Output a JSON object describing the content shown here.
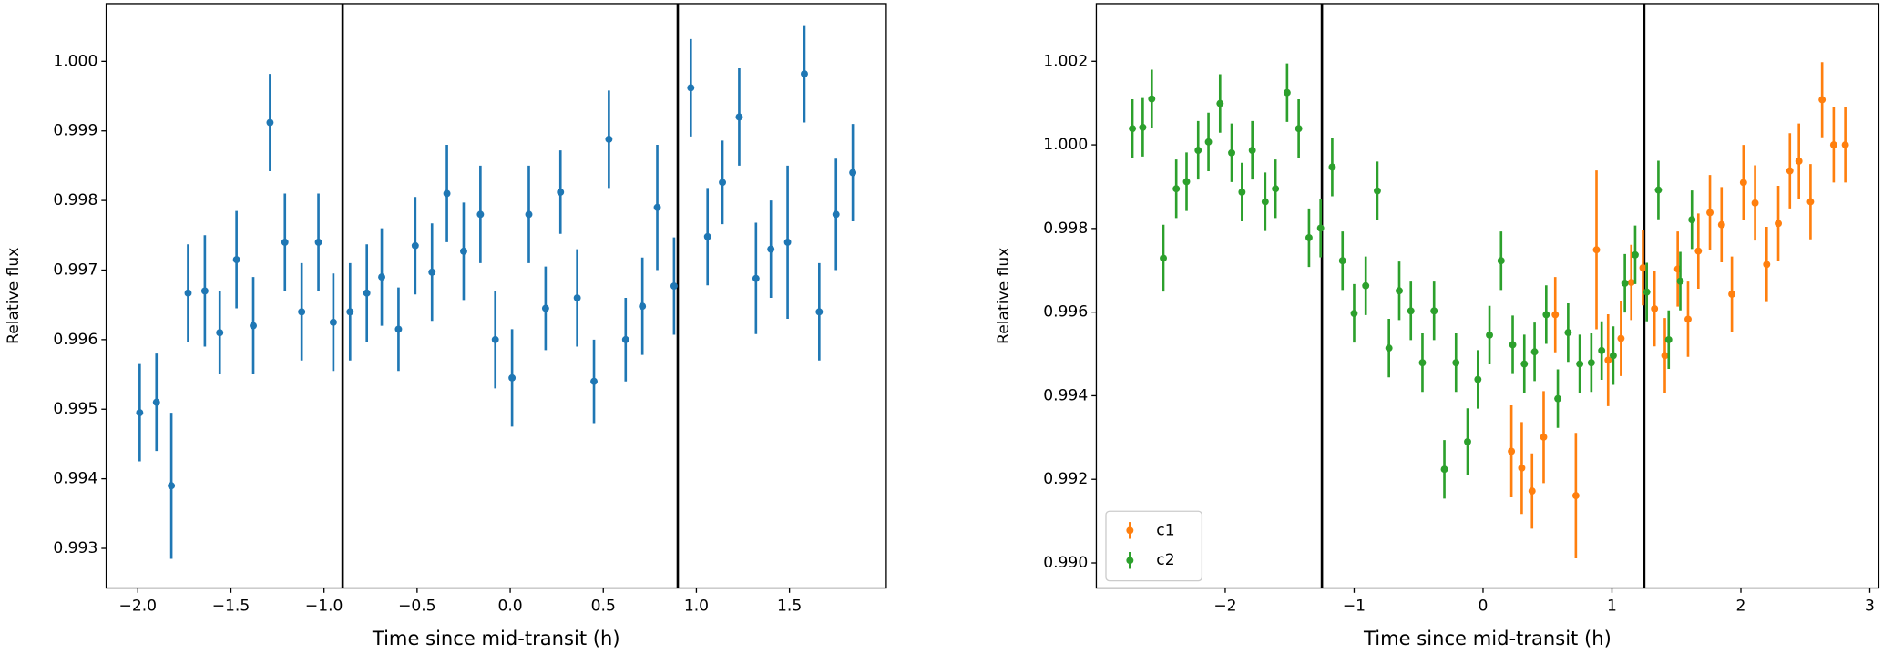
{
  "chart_data": [
    {
      "type": "errorbar",
      "xlabel": "Time since mid-transit (h)",
      "ylabel": "Relative flux",
      "xlim": [
        -2.17,
        2.02
      ],
      "ylim": [
        0.99243,
        1.00083
      ],
      "xticks": [
        {
          "value": -2.0,
          "label": "−2.0"
        },
        {
          "value": -1.5,
          "label": "−1.5"
        },
        {
          "value": -1.0,
          "label": "−1.0"
        },
        {
          "value": -0.5,
          "label": "−0.5"
        },
        {
          "value": 0.0,
          "label": "0.0"
        },
        {
          "value": 0.5,
          "label": "0.5"
        },
        {
          "value": 1.0,
          "label": "1.0"
        },
        {
          "value": 1.5,
          "label": "1.5"
        }
      ],
      "yticks": [
        0.993,
        0.994,
        0.995,
        0.996,
        0.997,
        0.998,
        0.999,
        {
          "value": 1.0,
          "label": "1.000"
        }
      ],
      "vlines": [
        -0.9,
        0.9
      ],
      "series": [
        {
          "color": "#1f77b4",
          "x": [
            -1.99,
            -1.9,
            -1.82,
            -1.73,
            -1.64,
            -1.56,
            -1.47,
            -1.38,
            -1.29,
            -1.21,
            -1.12,
            -1.03,
            -0.95,
            -0.86,
            -0.77,
            -0.69,
            -0.6,
            -0.51,
            -0.42,
            -0.34,
            -0.25,
            -0.16,
            -0.08,
            0.01,
            0.1,
            0.19,
            0.27,
            0.36,
            0.45,
            0.53,
            0.62,
            0.71,
            0.79,
            0.88,
            0.97,
            1.06,
            1.14,
            1.23,
            1.32,
            1.4,
            1.49,
            1.58,
            1.66,
            1.75,
            1.84
          ],
          "values": [
            0.99495,
            0.9951,
            0.9939,
            0.99667,
            0.9967,
            0.9961,
            0.99715,
            0.9962,
            0.99912,
            0.9974,
            0.9964,
            0.9974,
            0.99625,
            0.9964,
            0.99667,
            0.9969,
            0.99615,
            0.99735,
            0.99697,
            0.9981,
            0.99727,
            0.9978,
            0.996,
            0.99545,
            0.9978,
            0.99645,
            0.99812,
            0.9966,
            0.9954,
            0.99888,
            0.996,
            0.99648,
            0.9979,
            0.99677,
            0.99962,
            0.99748,
            0.99826,
            0.9992,
            0.99688,
            0.9973,
            0.9974,
            0.99982,
            0.9964,
            0.9978,
            0.9984
          ],
          "errors": [
            0.0007,
            0.0007,
            0.00105,
            0.0007,
            0.0008,
            0.0006,
            0.0007,
            0.0007,
            0.0007,
            0.0007,
            0.0007,
            0.0007,
            0.0007,
            0.0007,
            0.0007,
            0.0007,
            0.0006,
            0.0007,
            0.0007,
            0.0007,
            0.0007,
            0.0007,
            0.0007,
            0.0007,
            0.0007,
            0.0006,
            0.0006,
            0.0007,
            0.0006,
            0.0007,
            0.0006,
            0.0007,
            0.0009,
            0.0007,
            0.0007,
            0.0007,
            0.0006,
            0.0007,
            0.0008,
            0.0007,
            0.0011,
            0.0007,
            0.0007,
            0.0008,
            0.0007
          ]
        }
      ]
    },
    {
      "type": "errorbar",
      "xlabel": "Time since mid-transit (h)",
      "ylabel": "Relative flux",
      "xlim": [
        -3.0,
        3.07
      ],
      "ylim": [
        0.9894,
        1.00338
      ],
      "xticks": [
        {
          "value": -2,
          "label": "−2"
        },
        {
          "value": -1,
          "label": "−1"
        },
        0,
        1,
        2,
        3
      ],
      "yticks": [
        {
          "value": 0.99,
          "label": "0.990"
        },
        0.992,
        0.994,
        0.996,
        0.998,
        {
          "value": 1.0,
          "label": "1.000"
        },
        1.002
      ],
      "vlines": [
        -1.25,
        1.25
      ],
      "legend": "lower left",
      "series": [
        {
          "name": "c1",
          "color": "#ff7f0e",
          "x": [
            0.22,
            0.3,
            0.38,
            0.47,
            0.56,
            0.72,
            0.88,
            0.97,
            1.07,
            1.15,
            1.24,
            1.33,
            1.41,
            1.51,
            1.59,
            1.67,
            1.76,
            1.85,
            1.93,
            2.02,
            2.11,
            2.2,
            2.29,
            2.38,
            2.45,
            2.54,
            2.63,
            2.72,
            2.81
          ],
          "values": [
            0.99267,
            0.99227,
            0.99172,
            0.99301,
            0.99594,
            0.99161,
            0.99749,
            0.99485,
            0.99537,
            0.99671,
            0.99706,
            0.99608,
            0.99496,
            0.99703,
            0.99583,
            0.99746,
            0.99838,
            0.99809,
            0.99643,
            0.9991,
            0.99861,
            0.99714,
            0.99812,
            0.99938,
            0.99961,
            0.99864,
            1.00108,
            1.0,
            1.0
          ],
          "errors": [
            0.0011,
            0.0011,
            0.0009,
            0.0011,
            0.0009,
            0.0015,
            0.0019,
            0.0011,
            0.0009,
            0.0009,
            0.0009,
            0.0009,
            0.0009,
            0.0009,
            0.0009,
            0.0009,
            0.0009,
            0.0009,
            0.0009,
            0.0009,
            0.0009,
            0.0009,
            0.0009,
            0.0009,
            0.0009,
            0.0009,
            0.0009,
            0.0009,
            0.0009
          ]
        },
        {
          "name": "c2",
          "color": "#2ca02c",
          "x": [
            -2.72,
            -2.64,
            -2.57,
            -2.48,
            -2.38,
            -2.3,
            -2.21,
            -2.13,
            -2.04,
            -1.95,
            -1.87,
            -1.79,
            -1.69,
            -1.61,
            -1.52,
            -1.43,
            -1.35,
            -1.26,
            -1.17,
            -1.09,
            -1.0,
            -0.91,
            -0.82,
            -0.73,
            -0.65,
            -0.56,
            -0.47,
            -0.38,
            -0.3,
            -0.21,
            -0.12,
            -0.04,
            0.05,
            0.14,
            0.23,
            0.32,
            0.4,
            0.49,
            0.58,
            0.66,
            0.75,
            0.84,
            0.92,
            1.01,
            1.1,
            1.18,
            1.27,
            1.36,
            1.44,
            1.53,
            1.62
          ],
          "values": [
            1.00039,
            1.00042,
            1.0011,
            0.99729,
            0.99895,
            0.99912,
            0.99987,
            1.00007,
            1.00099,
            0.99981,
            0.99887,
            0.99987,
            0.99864,
            0.99895,
            1.00125,
            1.00039,
            0.99778,
            0.99801,
            0.99947,
            0.99723,
            0.99597,
            0.99663,
            0.9989,
            0.99514,
            0.99651,
            0.99603,
            0.99479,
            0.99603,
            0.99224,
            0.99479,
            0.9929,
            0.99439,
            0.99545,
            0.99723,
            0.99522,
            0.99476,
            0.99505,
            0.99594,
            0.99393,
            0.99551,
            0.99476,
            0.99479,
            0.99508,
            0.99496,
            0.99669,
            0.99737,
            0.99648,
            0.99892,
            0.99534,
            0.99674,
            0.99821
          ],
          "errors": [
            0.0007,
            0.0007,
            0.0007,
            0.0008,
            0.0007,
            0.0007,
            0.0007,
            0.0007,
            0.0007,
            0.0007,
            0.0007,
            0.0007,
            0.0007,
            0.0007,
            0.0007,
            0.0007,
            0.0007,
            0.0007,
            0.0007,
            0.0007,
            0.0007,
            0.0007,
            0.0007,
            0.0007,
            0.0007,
            0.0007,
            0.0007,
            0.0007,
            0.0007,
            0.0007,
            0.0008,
            0.0007,
            0.0007,
            0.0007,
            0.0007,
            0.0007,
            0.0007,
            0.0007,
            0.0007,
            0.0007,
            0.0007,
            0.0007,
            0.0007,
            0.0007,
            0.0007,
            0.0007,
            0.0007,
            0.0007,
            0.0007,
            0.0007,
            0.0007
          ]
        }
      ]
    }
  ]
}
